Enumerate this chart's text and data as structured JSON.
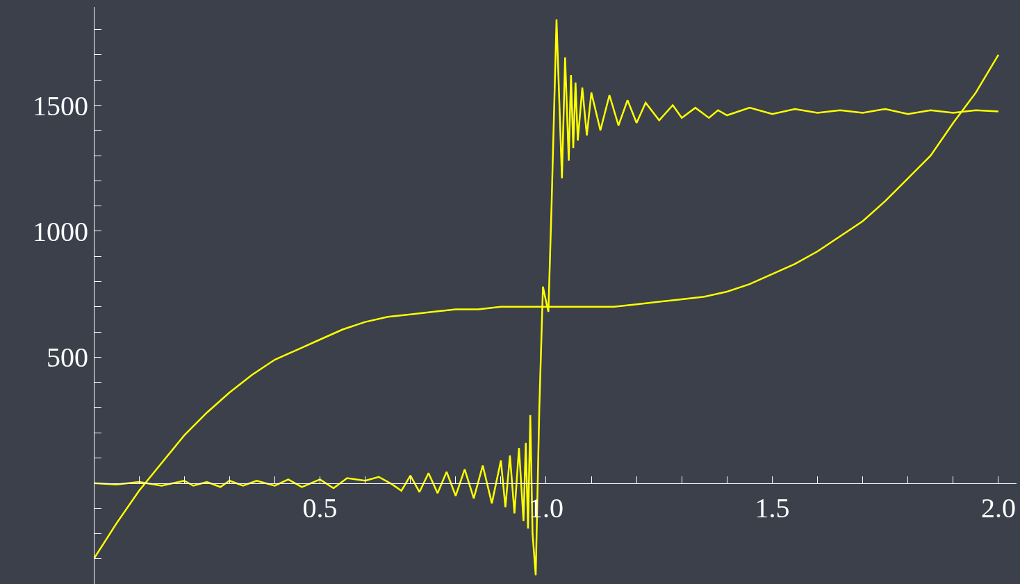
{
  "chart_data": {
    "type": "line",
    "xlim": [
      0,
      2.04
    ],
    "ylim": [
      -400,
      1890
    ],
    "xticks": [
      {
        "value": 0.1,
        "label": null
      },
      {
        "value": 0.2,
        "label": null
      },
      {
        "value": 0.3,
        "label": null
      },
      {
        "value": 0.4,
        "label": null
      },
      {
        "value": 0.5,
        "label": "0.5"
      },
      {
        "value": 0.6,
        "label": null
      },
      {
        "value": 0.7,
        "label": null
      },
      {
        "value": 0.8,
        "label": null
      },
      {
        "value": 0.9,
        "label": null
      },
      {
        "value": 1.0,
        "label": "1.0"
      },
      {
        "value": 1.1,
        "label": null
      },
      {
        "value": 1.2,
        "label": null
      },
      {
        "value": 1.3,
        "label": null
      },
      {
        "value": 1.4,
        "label": null
      },
      {
        "value": 1.5,
        "label": "1.5"
      },
      {
        "value": 1.6,
        "label": null
      },
      {
        "value": 1.7,
        "label": null
      },
      {
        "value": 1.8,
        "label": null
      },
      {
        "value": 1.9,
        "label": null
      },
      {
        "value": 2.0,
        "label": "2.0"
      }
    ],
    "yticks": [
      {
        "value": -300,
        "label": null
      },
      {
        "value": -200,
        "label": null
      },
      {
        "value": -100,
        "label": null
      },
      {
        "value": 100,
        "label": null
      },
      {
        "value": 200,
        "label": null
      },
      {
        "value": 300,
        "label": null
      },
      {
        "value": 400,
        "label": null
      },
      500,
      {
        "value": 600,
        "label": null
      },
      {
        "value": 700,
        "label": null
      },
      {
        "value": 800,
        "label": null
      },
      {
        "value": 900,
        "label": null
      },
      1000,
      {
        "value": 1100,
        "label": null
      },
      {
        "value": 1200,
        "label": null
      },
      {
        "value": 1300,
        "label": null
      },
      {
        "value": 1400,
        "label": null
      },
      1500,
      {
        "value": 1600,
        "label": null
      },
      {
        "value": 1700,
        "label": null
      },
      {
        "value": 1800,
        "label": null
      }
    ],
    "grid": false,
    "marker": "none",
    "line_style": "solid",
    "series": [
      {
        "color": "#ffff00",
        "x": [
          0,
          0.05,
          0.1,
          0.15,
          0.2,
          0.25,
          0.3,
          0.35,
          0.4,
          0.45,
          0.5,
          0.55,
          0.6,
          0.65,
          0.7,
          0.75,
          0.8,
          0.85,
          0.9,
          0.95,
          1.0,
          1.05,
          1.1,
          1.15,
          1.2,
          1.25,
          1.3,
          1.35,
          1.4,
          1.45,
          1.5,
          1.55,
          1.6,
          1.65,
          1.7,
          1.75,
          1.8,
          1.85,
          1.9,
          1.95,
          2.0
        ],
        "values": [
          -300,
          -160,
          -30,
          80,
          190,
          280,
          360,
          430,
          490,
          530,
          570,
          610,
          640,
          660,
          670,
          680,
          690,
          690,
          700,
          700,
          700,
          700,
          700,
          700,
          710,
          720,
          730,
          740,
          760,
          790,
          830,
          870,
          920,
          980,
          1040,
          1120,
          1210,
          1300,
          1430,
          1550,
          1700
        ]
      },
      {
        "color": "#ffff00",
        "x": [
          0,
          0.05,
          0.1,
          0.15,
          0.2,
          0.22,
          0.25,
          0.28,
          0.3,
          0.33,
          0.36,
          0.4,
          0.43,
          0.46,
          0.5,
          0.53,
          0.56,
          0.6,
          0.63,
          0.66,
          0.68,
          0.7,
          0.72,
          0.74,
          0.76,
          0.78,
          0.8,
          0.82,
          0.84,
          0.86,
          0.88,
          0.9,
          0.91,
          0.92,
          0.93,
          0.94,
          0.95,
          0.955,
          0.96,
          0.965,
          0.97,
          0.977,
          0.985,
          0.993,
          1.0,
          1.005,
          1.012,
          1.023,
          1.035,
          1.042,
          1.05,
          1.055,
          1.06,
          1.065,
          1.07,
          1.08,
          1.09,
          1.1,
          1.12,
          1.14,
          1.16,
          1.18,
          1.2,
          1.22,
          1.25,
          1.28,
          1.3,
          1.33,
          1.36,
          1.38,
          1.4,
          1.45,
          1.5,
          1.55,
          1.6,
          1.65,
          1.7,
          1.75,
          1.8,
          1.85,
          1.9,
          1.95,
          2.0
        ],
        "values": [
          0,
          -5,
          5,
          -10,
          10,
          -10,
          5,
          -15,
          10,
          -10,
          10,
          -10,
          15,
          -15,
          15,
          -20,
          20,
          10,
          25,
          -5,
          -30,
          30,
          -35,
          40,
          -40,
          45,
          -50,
          55,
          -60,
          70,
          -80,
          90,
          -95,
          110,
          -120,
          140,
          -150,
          160,
          -180,
          270,
          -200,
          -365,
          300,
          780,
          720,
          680,
          1100,
          1840,
          1210,
          1690,
          1280,
          1620,
          1330,
          1590,
          1360,
          1570,
          1380,
          1550,
          1400,
          1540,
          1420,
          1520,
          1430,
          1510,
          1440,
          1500,
          1450,
          1490,
          1450,
          1480,
          1460,
          1490,
          1465,
          1485,
          1470,
          1480,
          1470,
          1485,
          1465,
          1480,
          1470,
          1480,
          1475
        ]
      }
    ]
  }
}
